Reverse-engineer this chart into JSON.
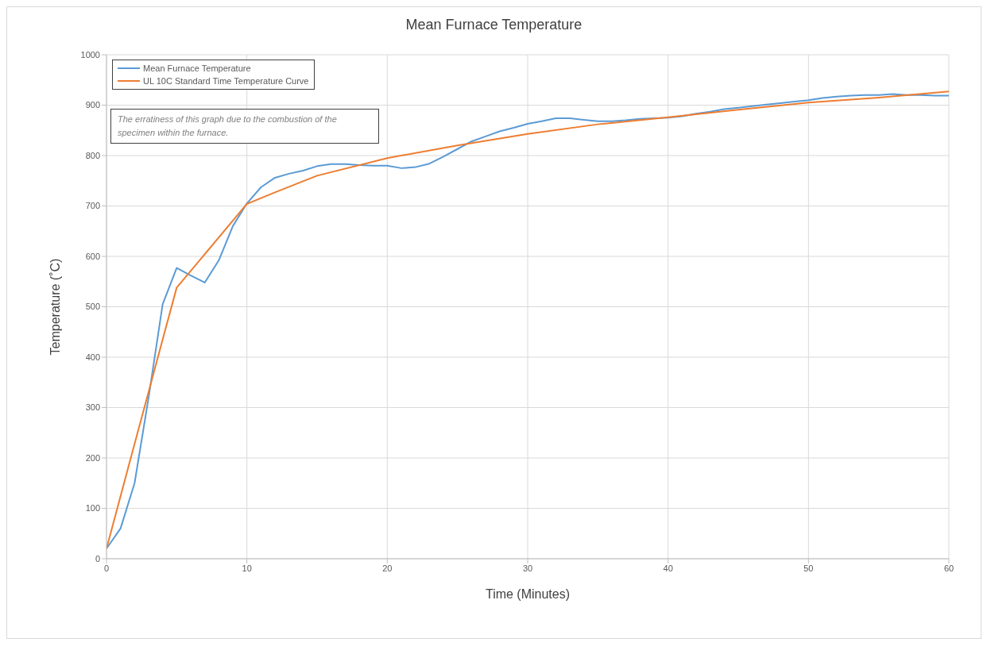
{
  "chart_data": {
    "type": "line",
    "title": "Mean Furnace Temperature",
    "xlabel": "Time (Minutes)",
    "ylabel": "Temperature (˚C)",
    "xlim": [
      0,
      60
    ],
    "xticks": [
      0,
      10,
      20,
      30,
      40,
      50,
      60
    ],
    "ylim": [
      0,
      1000
    ],
    "yticks": [
      0,
      100,
      200,
      300,
      400,
      500,
      600,
      700,
      800,
      900,
      1000
    ],
    "grid": true,
    "legend": "top left",
    "marker": "none",
    "line_style": "solid",
    "annotations": [
      "The erratiness of this graph due to the combustion of the specimen within the furnace."
    ],
    "series": [
      {
        "name": "Mean Furnace Temperature",
        "color": "#5b9bd5",
        "x": [
          0,
          1,
          2,
          3,
          4,
          5,
          6,
          7,
          8,
          9,
          10,
          11,
          12,
          13,
          14,
          15,
          16,
          17,
          18,
          19,
          20,
          21,
          22,
          23,
          24,
          25,
          26,
          27,
          28,
          29,
          30,
          31,
          32,
          33,
          34,
          35,
          36,
          37,
          38,
          39,
          40,
          41,
          42,
          43,
          44,
          45,
          46,
          47,
          48,
          49,
          50,
          51,
          52,
          53,
          54,
          55,
          56,
          57,
          58,
          59,
          60
        ],
        "values": [
          20,
          60,
          150,
          320,
          505,
          577,
          562,
          548,
          592,
          660,
          705,
          737,
          756,
          764,
          770,
          779,
          783,
          783,
          781,
          780,
          780,
          775,
          777,
          784,
          798,
          813,
          828,
          838,
          848,
          855,
          863,
          868,
          874,
          874,
          871,
          868,
          868,
          870,
          873,
          874,
          875,
          878,
          883,
          887,
          892,
          895,
          898,
          901,
          904,
          907,
          910,
          914,
          917,
          919,
          920,
          920,
          922,
          920,
          920,
          919,
          919
        ]
      },
      {
        "name": "UL 10C Standard Time Temperature Curve",
        "color": "#ed7d31",
        "x": [
          0,
          1,
          2,
          3,
          4,
          5,
          10,
          12,
          15,
          20,
          25,
          30,
          35,
          40,
          45,
          50,
          55,
          60
        ],
        "values": [
          20,
          124,
          228,
          331,
          435,
          538,
          704,
          727,
          760,
          795,
          820,
          843,
          862,
          876,
          891,
          905,
          915,
          927
        ]
      }
    ]
  }
}
